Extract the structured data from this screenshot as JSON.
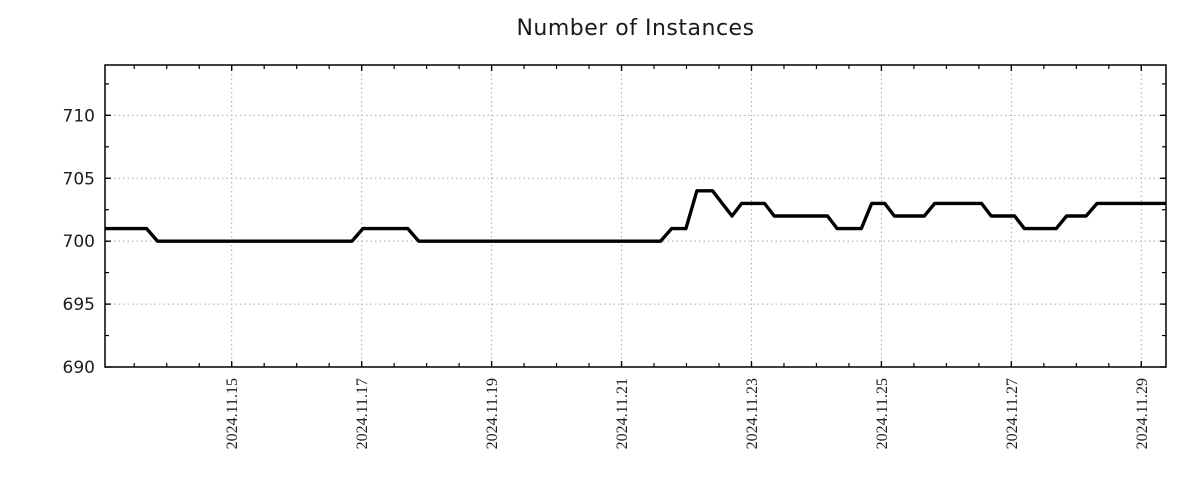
{
  "chart_data": {
    "type": "line",
    "title": "Number of Instances",
    "legend_position": "none",
    "grid": {
      "show": true,
      "style": "dotted",
      "color": "#a9a9a9"
    },
    "frame_color": "#000000",
    "x_axis": {
      "unit": "date (November 2024, day-of-month)",
      "xlim": [
        13.05,
        29.38
      ],
      "minor_tick_interval_days": 0.5,
      "major_ticks": [
        {
          "t": 15,
          "label": "2024.11.15"
        },
        {
          "t": 17,
          "label": "2024.11.17"
        },
        {
          "t": 19,
          "label": "2024.11.19"
        },
        {
          "t": 21,
          "label": "2024.11.21"
        },
        {
          "t": 23,
          "label": "2024.11.23"
        },
        {
          "t": 25,
          "label": "2024.11.25"
        },
        {
          "t": 27,
          "label": "2024.11.27"
        },
        {
          "t": 29,
          "label": "2024.11.29"
        }
      ]
    },
    "y_axis": {
      "ylim": [
        690,
        714
      ],
      "minor_tick_interval": 2.5,
      "major_ticks": [
        690,
        695,
        700,
        705,
        710
      ]
    },
    "series": [
      {
        "name": "instances",
        "color": "#000000",
        "points": [
          [
            13.05,
            701
          ],
          [
            13.69,
            701
          ],
          [
            13.86,
            700
          ],
          [
            16.85,
            700
          ],
          [
            17.02,
            701
          ],
          [
            17.71,
            701
          ],
          [
            17.88,
            700
          ],
          [
            21.6,
            700
          ],
          [
            21.77,
            701
          ],
          [
            21.99,
            701
          ],
          [
            22.16,
            704
          ],
          [
            22.4,
            704
          ],
          [
            22.7,
            702
          ],
          [
            22.85,
            703
          ],
          [
            23.2,
            703
          ],
          [
            23.35,
            702
          ],
          [
            24.17,
            702
          ],
          [
            24.32,
            701
          ],
          [
            24.69,
            701
          ],
          [
            24.85,
            703
          ],
          [
            25.05,
            703
          ],
          [
            25.2,
            702
          ],
          [
            25.66,
            702
          ],
          [
            25.82,
            703
          ],
          [
            26.54,
            703
          ],
          [
            26.69,
            702
          ],
          [
            27.05,
            702
          ],
          [
            27.2,
            701
          ],
          [
            27.69,
            701
          ],
          [
            27.85,
            702
          ],
          [
            28.15,
            702
          ],
          [
            28.32,
            703
          ],
          [
            29.38,
            703
          ]
        ]
      }
    ]
  }
}
